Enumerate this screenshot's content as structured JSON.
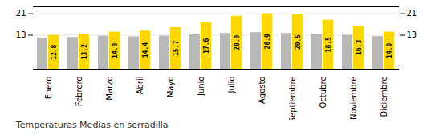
{
  "chart_data": {
    "type": "bar",
    "title": "Temperaturas Medias en serradilla",
    "categories": [
      "Enero",
      "Febrero",
      "Marzo",
      "Abril",
      "Mayo",
      "Junio",
      "Julio",
      "Agosto",
      "Septiembre",
      "Octubre",
      "Noviembre",
      "Diciembre"
    ],
    "series": [
      {
        "color": "#B8B8B8",
        "values": [
          11.8,
          12.0,
          12.5,
          12.2,
          12.5,
          13.0,
          13.5,
          13.8,
          13.5,
          13.2,
          12.8,
          12.3
        ]
      },
      {
        "color": "#FFD700",
        "values": [
          12.8,
          13.2,
          14.0,
          14.4,
          15.7,
          17.6,
          20.0,
          20.9,
          20.5,
          18.5,
          16.3,
          14.0
        ],
        "data_labels": true,
        "value_labels": [
          "12.8",
          "13.2",
          "14.0",
          "14.4",
          "15.7",
          "17.6",
          "20.0",
          "20.9",
          "20.5",
          "18.5",
          "16.3",
          "14.0"
        ]
      }
    ],
    "ylim": [
      0,
      23.5
    ],
    "yticks": [
      12.8,
      20.9
    ],
    "grid": true
  }
}
